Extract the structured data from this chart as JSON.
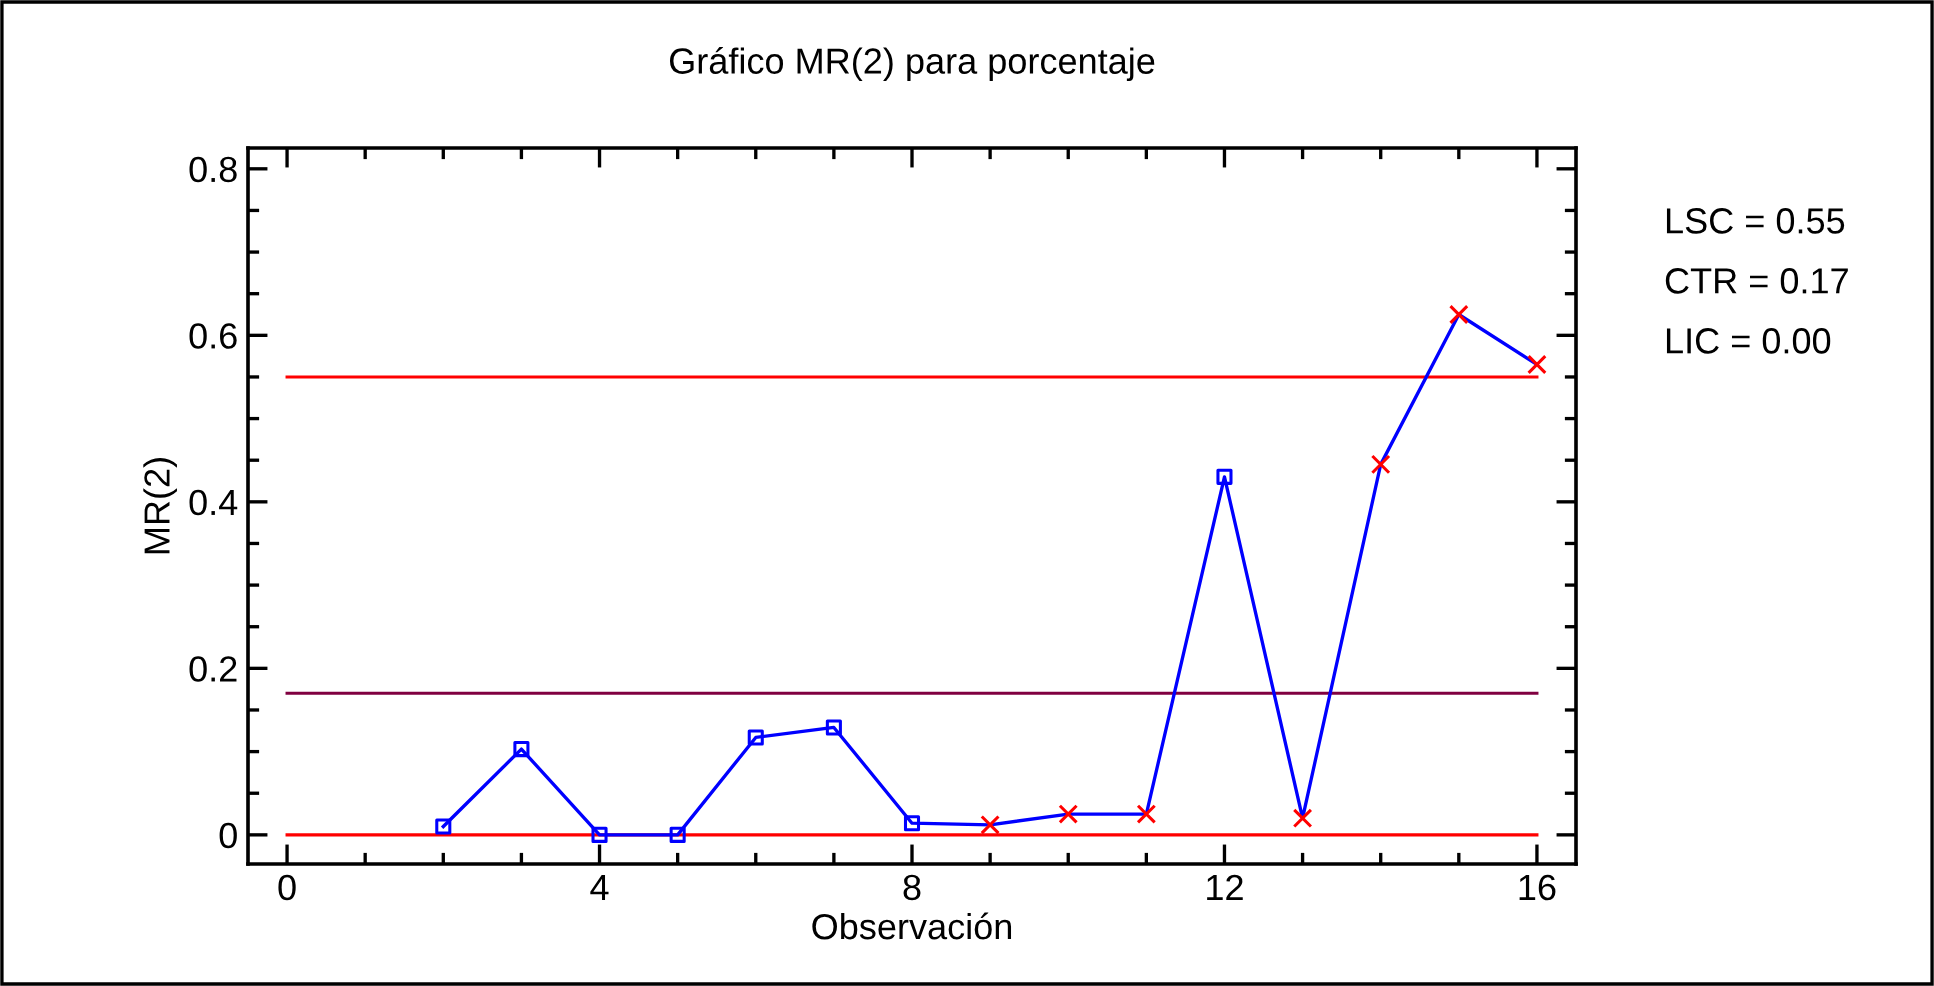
{
  "chart_data": {
    "type": "line",
    "title": "Gráfico MR(2) para porcentaje",
    "xlabel": "Observación",
    "ylabel": "MR(2)",
    "xlim": [
      -0.5,
      16.5
    ],
    "ylim": [
      -0.035,
      0.825
    ],
    "xticks": [
      0,
      {
        "value": 1,
        "label": null
      },
      {
        "value": 2,
        "label": null
      },
      {
        "value": 3,
        "label": null
      },
      4,
      {
        "value": 5,
        "label": null
      },
      {
        "value": 6,
        "label": null
      },
      {
        "value": 7,
        "label": null
      },
      8,
      {
        "value": 9,
        "label": null
      },
      {
        "value": 10,
        "label": null
      },
      {
        "value": 11,
        "label": null
      },
      12,
      {
        "value": 13,
        "label": null
      },
      {
        "value": 14,
        "label": null
      },
      {
        "value": 15,
        "label": null
      },
      16
    ],
    "yticks": [
      0,
      {
        "value": 0.05,
        "label": null
      },
      {
        "value": 0.1,
        "label": null
      },
      {
        "value": 0.15,
        "label": null
      },
      0.2,
      {
        "value": 0.25,
        "label": null
      },
      {
        "value": 0.3,
        "label": null
      },
      {
        "value": 0.35,
        "label": null
      },
      0.4,
      {
        "value": 0.45,
        "label": null
      },
      {
        "value": 0.5,
        "label": null
      },
      {
        "value": 0.55,
        "label": null
      },
      0.6,
      {
        "value": 0.65,
        "label": null
      },
      {
        "value": 0.7,
        "label": null
      },
      {
        "value": 0.75,
        "label": null
      },
      0.8
    ],
    "grid": false,
    "legend": false,
    "series": [
      {
        "color": "#0000ff",
        "marker": "none",
        "line_style": "solid",
        "x": [
          2,
          3,
          4,
          5,
          6,
          7,
          8,
          9,
          10,
          11,
          12,
          13,
          14,
          15,
          16
        ],
        "values": [
          0.01,
          0.103,
          0.0,
          0.0,
          0.117,
          0.129,
          0.014,
          0.012,
          0.025,
          0.025,
          0.43,
          0.02,
          0.445,
          0.625,
          0.565
        ]
      },
      {
        "type": "scatter",
        "color": "#0000ff",
        "marker": "square",
        "x": [
          2,
          3,
          4,
          5,
          6,
          7,
          8,
          12
        ],
        "values": [
          0.01,
          0.103,
          0.0,
          0.0,
          0.117,
          0.129,
          0.014,
          0.43
        ]
      },
      {
        "type": "scatter",
        "color": "#ff0000",
        "marker": "cross",
        "x": [
          9,
          10,
          11,
          13,
          14,
          15,
          16
        ],
        "values": [
          0.012,
          0.025,
          0.025,
          0.02,
          0.445,
          0.625,
          0.565
        ]
      }
    ],
    "ref_lines": [
      {
        "axis": "y",
        "value": 0.55,
        "color": "#ff0000"
      },
      {
        "axis": "y",
        "value": 0.17,
        "color": "#800040"
      },
      {
        "axis": "y",
        "value": 0.0,
        "color": "#ff0000"
      }
    ],
    "annotations": [
      "LSC = 0.55",
      "CTR = 0.17",
      "LIC = 0.00"
    ]
  }
}
